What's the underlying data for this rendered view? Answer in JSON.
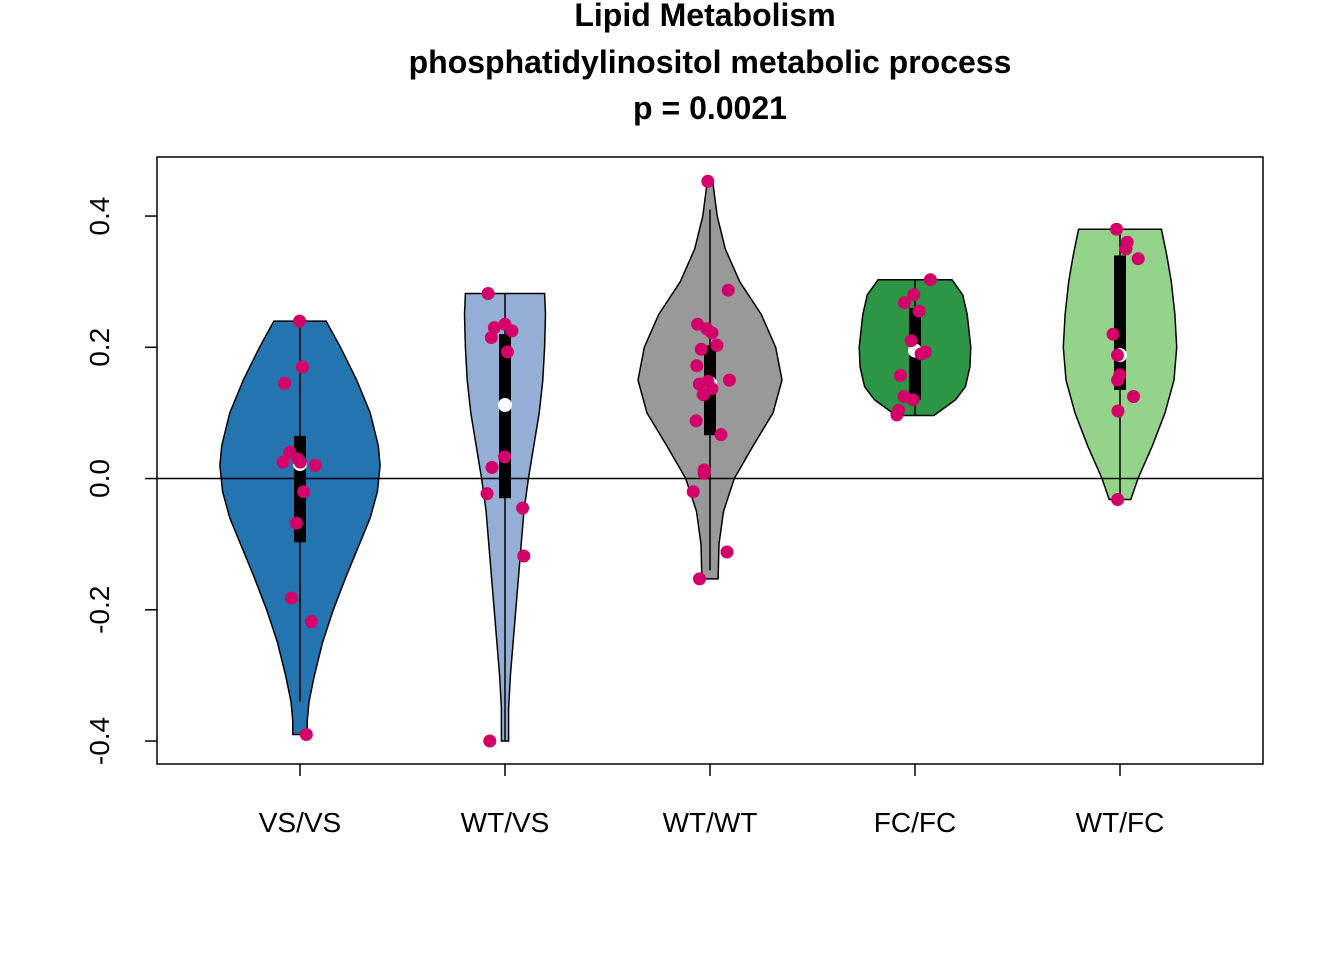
{
  "chart_data": {
    "type": "violin",
    "title_lines": [
      "Lipid Metabolism",
      "phosphatidylinositol metabolic process",
      "p = 0.0021"
    ],
    "xlabel": "",
    "ylabel": "",
    "categories": [
      "VS/VS",
      "WT/VS",
      "WT/WT",
      "FC/FC",
      "WT/FC"
    ],
    "ylim": [
      -0.435,
      0.49
    ],
    "yticks": [
      -0.4,
      -0.2,
      0.0,
      0.2,
      0.4
    ],
    "ytick_labels": [
      "-0.4",
      "-0.2",
      "0.0",
      "0.2",
      "0.4"
    ],
    "reference_line_y": 0.0,
    "grid": false,
    "point_color": "#d4006a",
    "median_marker_color": "#ffffff",
    "groups": [
      {
        "name": "VS/VS",
        "color": "#2474b0",
        "min": -0.39,
        "max": 0.24,
        "whisker_low": -0.34,
        "whisker_high": 0.24,
        "q1": -0.097,
        "median": 0.022,
        "q3": 0.065,
        "density": [
          [
            0.24,
            0.29
          ],
          [
            0.2,
            0.45
          ],
          [
            0.15,
            0.63
          ],
          [
            0.1,
            0.78
          ],
          [
            0.05,
            0.87
          ],
          [
            0.02,
            0.89
          ],
          [
            -0.02,
            0.86
          ],
          [
            -0.06,
            0.78
          ],
          [
            -0.1,
            0.66
          ],
          [
            -0.15,
            0.51
          ],
          [
            -0.2,
            0.37
          ],
          [
            -0.25,
            0.25
          ],
          [
            -0.3,
            0.16
          ],
          [
            -0.34,
            0.1
          ],
          [
            -0.37,
            0.08
          ],
          [
            -0.39,
            0.08
          ]
        ],
        "points": [
          0.24,
          0.17,
          0.145,
          0.04,
          0.03,
          0.025,
          0.025,
          0.02,
          -0.02,
          -0.068,
          -0.182,
          -0.218,
          -0.39
        ]
      },
      {
        "name": "WT/VS",
        "color": "#95aed5",
        "min": -0.4,
        "max": 0.282,
        "whisker_low": -0.4,
        "whisker_high": 0.282,
        "q1": -0.03,
        "median": 0.112,
        "q3": 0.22,
        "density": [
          [
            0.282,
            0.44
          ],
          [
            0.25,
            0.45
          ],
          [
            0.2,
            0.44
          ],
          [
            0.15,
            0.42
          ],
          [
            0.1,
            0.38
          ],
          [
            0.05,
            0.32
          ],
          [
            0.0,
            0.26
          ],
          [
            -0.05,
            0.21
          ],
          [
            -0.1,
            0.18
          ],
          [
            -0.15,
            0.15
          ],
          [
            -0.2,
            0.12
          ],
          [
            -0.25,
            0.09
          ],
          [
            -0.3,
            0.06
          ],
          [
            -0.35,
            0.04
          ],
          [
            -0.4,
            0.04
          ]
        ],
        "points": [
          0.282,
          0.235,
          0.23,
          0.225,
          0.215,
          0.193,
          0.033,
          0.017,
          -0.023,
          -0.045,
          -0.118,
          -0.4
        ]
      },
      {
        "name": "WT/WT",
        "color": "#999999",
        "min": -0.153,
        "max": 0.453,
        "whisker_low": -0.14,
        "whisker_high": 0.41,
        "q1": 0.066,
        "median": 0.145,
        "q3": 0.203,
        "density": [
          [
            0.453,
            0.03
          ],
          [
            0.4,
            0.08
          ],
          [
            0.35,
            0.17
          ],
          [
            0.3,
            0.33
          ],
          [
            0.25,
            0.57
          ],
          [
            0.2,
            0.73
          ],
          [
            0.15,
            0.8
          ],
          [
            0.1,
            0.7
          ],
          [
            0.05,
            0.48
          ],
          [
            0.0,
            0.27
          ],
          [
            -0.05,
            0.15
          ],
          [
            -0.1,
            0.1
          ],
          [
            -0.153,
            0.09
          ]
        ],
        "points": [
          0.453,
          0.287,
          0.235,
          0.228,
          0.222,
          0.203,
          0.197,
          0.172,
          0.15,
          0.148,
          0.144,
          0.137,
          0.128,
          0.088,
          0.067,
          0.013,
          0.008,
          -0.02,
          -0.112,
          -0.153
        ]
      },
      {
        "name": "FC/FC",
        "color": "#2c9646",
        "min": 0.096,
        "max": 0.303,
        "whisker_low": 0.096,
        "whisker_high": 0.303,
        "q1": 0.12,
        "median": 0.195,
        "q3": 0.26,
        "density": [
          [
            0.303,
            0.41
          ],
          [
            0.28,
            0.53
          ],
          [
            0.25,
            0.58
          ],
          [
            0.2,
            0.62
          ],
          [
            0.17,
            0.61
          ],
          [
            0.14,
            0.56
          ],
          [
            0.12,
            0.45
          ],
          [
            0.105,
            0.3
          ],
          [
            0.096,
            0.21
          ]
        ],
        "points": [
          0.303,
          0.28,
          0.268,
          0.255,
          0.21,
          0.193,
          0.19,
          0.157,
          0.125,
          0.12,
          0.104,
          0.097
        ]
      },
      {
        "name": "WT/FC",
        "color": "#93d38a",
        "min": -0.032,
        "max": 0.38,
        "whisker_low": -0.032,
        "whisker_high": 0.38,
        "q1": 0.135,
        "median": 0.188,
        "q3": 0.34,
        "density": [
          [
            0.38,
            0.46
          ],
          [
            0.34,
            0.52
          ],
          [
            0.3,
            0.57
          ],
          [
            0.25,
            0.61
          ],
          [
            0.2,
            0.63
          ],
          [
            0.15,
            0.6
          ],
          [
            0.1,
            0.5
          ],
          [
            0.05,
            0.36
          ],
          [
            0.0,
            0.2
          ],
          [
            -0.032,
            0.12
          ]
        ],
        "points": [
          0.38,
          0.36,
          0.35,
          0.335,
          0.22,
          0.188,
          0.158,
          0.15,
          0.125,
          0.103,
          -0.032
        ]
      }
    ]
  }
}
